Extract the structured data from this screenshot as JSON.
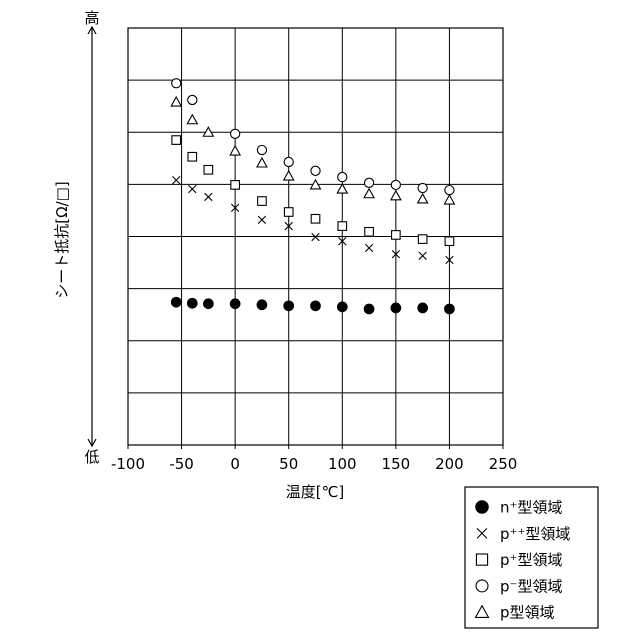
{
  "chart_data": {
    "type": "scatter",
    "xlabel": "温度[℃]",
    "ylabel": "シート抵抗[Ω/□]",
    "y_high_label": "高",
    "y_low_label": "低",
    "xlim": [
      -100,
      250
    ],
    "ylim": [
      0,
      8
    ],
    "xtick_labels": [
      "-100",
      "-50",
      "0",
      "50",
      "100",
      "150",
      "200",
      "250"
    ],
    "grid": true,
    "legend_position": "bottom-right, outside plot",
    "marker_color": "#000000",
    "series": [
      {
        "name": "n⁺型領域",
        "marker": "filled-circle",
        "x": [
          -55,
          -40,
          -25,
          0,
          25,
          50,
          75,
          100,
          125,
          150,
          175,
          200
        ],
        "y": [
          2.74,
          2.72,
          2.71,
          2.71,
          2.69,
          2.67,
          2.67,
          2.65,
          2.61,
          2.63,
          2.63,
          2.61
        ]
      },
      {
        "name": "p⁺⁺型領域",
        "marker": "cross",
        "x": [
          -55,
          -40,
          -25,
          0,
          25,
          50,
          75,
          100,
          125,
          150,
          175,
          200
        ],
        "y": [
          5.08,
          4.91,
          4.76,
          4.55,
          4.32,
          4.2,
          3.99,
          3.91,
          3.78,
          3.66,
          3.63,
          3.55
        ]
      },
      {
        "name": "p⁺型領域",
        "marker": "square",
        "x": [
          -55,
          -40,
          -25,
          0,
          25,
          50,
          75,
          100,
          125,
          150,
          175,
          200
        ],
        "y": [
          5.85,
          5.53,
          5.28,
          4.99,
          4.68,
          4.47,
          4.34,
          4.2,
          4.09,
          4.03,
          3.95,
          3.91
        ]
      },
      {
        "name": "p⁻型領域",
        "marker": "circle",
        "x": [
          -55,
          -40,
          0,
          25,
          50,
          75,
          100,
          125,
          150,
          175,
          200
        ],
        "y": [
          6.94,
          6.62,
          5.97,
          5.66,
          5.43,
          5.26,
          5.14,
          5.03,
          4.99,
          4.93,
          4.89
        ]
      },
      {
        "name": "p型領域",
        "marker": "triangle",
        "x": [
          -55,
          -40,
          -25,
          0,
          25,
          50,
          75,
          100,
          125,
          150,
          175,
          200
        ],
        "y": [
          6.58,
          6.24,
          6.0,
          5.64,
          5.41,
          5.16,
          4.99,
          4.91,
          4.82,
          4.78,
          4.72,
          4.7
        ]
      }
    ]
  }
}
